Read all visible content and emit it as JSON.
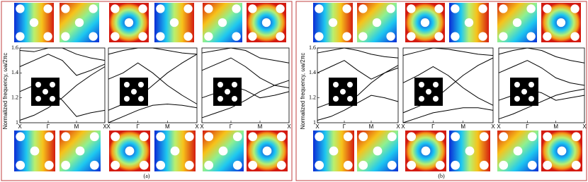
{
  "panel_labels": [
    "(a)",
    "(b)"
  ],
  "chart_data": [
    {
      "type": "line",
      "ylabel": "Normalized frequency, ωa/2πc",
      "x": [
        0,
        0.5,
        1,
        1.5,
        2,
        2.5,
        3
      ],
      "xticks": [
        {
          "value": 0,
          "label": "X"
        },
        {
          "value": 1,
          "label": "Γ"
        },
        {
          "value": 2,
          "label": "M"
        },
        {
          "value": 3,
          "label": "X"
        }
      ],
      "xlim": [
        0,
        3
      ],
      "ylim": [
        1,
        1.6
      ],
      "yticks": [
        1,
        1.2,
        1.4,
        1.6
      ],
      "series": [
        {
          "color": "#000000",
          "values": [
            1.02,
            1.06,
            1.12,
            1.2,
            1.3,
            1.38,
            1.45
          ]
        },
        {
          "color": "#000000",
          "values": [
            1.25,
            1.3,
            1.28,
            1.18,
            1.05,
            1.08,
            1.1
          ]
        },
        {
          "color": "#000000",
          "values": [
            1.45,
            1.5,
            1.55,
            1.5,
            1.38,
            1.42,
            1.47
          ]
        },
        {
          "color": "#000000",
          "values": [
            1.58,
            1.57,
            1.6,
            1.6,
            1.55,
            1.52,
            1.5
          ]
        }
      ]
    },
    {
      "type": "line",
      "x": [
        0,
        0.5,
        1,
        1.5,
        2,
        2.5,
        3
      ],
      "xticks": [
        {
          "value": 0,
          "label": "X"
        },
        {
          "value": 1,
          "label": "Γ"
        },
        {
          "value": 2,
          "label": "M"
        },
        {
          "value": 3,
          "label": "X"
        }
      ],
      "xlim": [
        0,
        3
      ],
      "ylim": [
        1,
        1.6
      ],
      "series": [
        {
          "color": "#000000",
          "values": [
            1.0,
            1.05,
            1.1,
            1.14,
            1.15,
            1.14,
            1.12
          ]
        },
        {
          "color": "#000000",
          "values": [
            1.1,
            1.15,
            1.2,
            1.3,
            1.4,
            1.48,
            1.55
          ]
        },
        {
          "color": "#000000",
          "values": [
            1.35,
            1.4,
            1.48,
            1.4,
            1.3,
            1.22,
            1.15
          ]
        },
        {
          "color": "#000000",
          "values": [
            1.55,
            1.58,
            1.6,
            1.6,
            1.58,
            1.56,
            1.55
          ]
        }
      ]
    },
    {
      "type": "line",
      "x": [
        0,
        0.5,
        1,
        1.5,
        2,
        2.5,
        3
      ],
      "xticks": [
        {
          "value": 0,
          "label": "X"
        },
        {
          "value": 1,
          "label": "Γ"
        },
        {
          "value": 2,
          "label": "M"
        },
        {
          "value": 3,
          "label": "X"
        }
      ],
      "xlim": [
        0,
        3
      ],
      "ylim": [
        1,
        1.6
      ],
      "series": [
        {
          "color": "#000000",
          "values": [
            1.04,
            1.08,
            1.12,
            1.18,
            1.25,
            1.3,
            1.34
          ]
        },
        {
          "color": "#000000",
          "values": [
            1.2,
            1.24,
            1.3,
            1.26,
            1.2,
            1.22,
            1.25
          ]
        },
        {
          "color": "#000000",
          "values": [
            1.42,
            1.47,
            1.52,
            1.45,
            1.36,
            1.3,
            1.28
          ]
        },
        {
          "color": "#000000",
          "values": [
            1.56,
            1.58,
            1.6,
            1.58,
            1.52,
            1.5,
            1.48
          ]
        }
      ]
    },
    {
      "type": "line",
      "ylabel": "Normalized frequency, ωa/2πc",
      "x": [
        0,
        0.5,
        1,
        1.5,
        2,
        2.5,
        3
      ],
      "xticks": [
        {
          "value": 0,
          "label": "X"
        },
        {
          "value": 1,
          "label": "Γ"
        },
        {
          "value": 2,
          "label": "M"
        },
        {
          "value": 3,
          "label": "X"
        }
      ],
      "xlim": [
        0,
        3
      ],
      "ylim": [
        1,
        1.6
      ],
      "yticks": [
        1,
        1.2,
        1.4,
        1.6
      ],
      "series": [
        {
          "color": "#000000",
          "values": [
            1.02,
            1.05,
            1.1,
            1.16,
            1.22,
            1.2,
            1.17
          ]
        },
        {
          "color": "#000000",
          "values": [
            1.12,
            1.16,
            1.14,
            1.22,
            1.32,
            1.4,
            1.46
          ]
        },
        {
          "color": "#000000",
          "values": [
            1.4,
            1.45,
            1.5,
            1.42,
            1.35,
            1.4,
            1.44
          ]
        },
        {
          "color": "#000000",
          "values": [
            1.56,
            1.58,
            1.6,
            1.58,
            1.55,
            1.53,
            1.52
          ]
        }
      ]
    },
    {
      "type": "line",
      "x": [
        0,
        0.5,
        1,
        1.5,
        2,
        2.5,
        3
      ],
      "xticks": [
        {
          "value": 0,
          "label": "X"
        },
        {
          "value": 1,
          "label": "Γ"
        },
        {
          "value": 2,
          "label": "M"
        },
        {
          "value": 3,
          "label": "X"
        }
      ],
      "xlim": [
        0,
        3
      ],
      "ylim": [
        1,
        1.6
      ],
      "series": [
        {
          "color": "#000000",
          "values": [
            1.0,
            1.04,
            1.08,
            1.1,
            1.12,
            1.12,
            1.1
          ]
        },
        {
          "color": "#000000",
          "values": [
            1.08,
            1.13,
            1.18,
            1.28,
            1.38,
            1.46,
            1.52
          ]
        },
        {
          "color": "#000000",
          "values": [
            1.32,
            1.38,
            1.45,
            1.38,
            1.28,
            1.2,
            1.14
          ]
        },
        {
          "color": "#000000",
          "values": [
            1.54,
            1.57,
            1.6,
            1.59,
            1.57,
            1.55,
            1.54
          ]
        }
      ]
    },
    {
      "type": "line",
      "x": [
        0,
        0.5,
        1,
        1.5,
        2,
        2.5,
        3
      ],
      "xticks": [
        {
          "value": 0,
          "label": "X"
        },
        {
          "value": 1,
          "label": "Γ"
        },
        {
          "value": 2,
          "label": "M"
        },
        {
          "value": 3,
          "label": "X"
        }
      ],
      "xlim": [
        0,
        3
      ],
      "ylim": [
        1,
        1.6
      ],
      "series": [
        {
          "color": "#000000",
          "values": [
            1.03,
            1.07,
            1.12,
            1.17,
            1.22,
            1.25,
            1.27
          ]
        },
        {
          "color": "#000000",
          "values": [
            1.18,
            1.22,
            1.27,
            1.24,
            1.18,
            1.2,
            1.22
          ]
        },
        {
          "color": "#000000",
          "values": [
            1.4,
            1.45,
            1.5,
            1.44,
            1.36,
            1.32,
            1.3
          ]
        },
        {
          "color": "#000000",
          "values": [
            1.55,
            1.58,
            1.6,
            1.58,
            1.53,
            1.5,
            1.48
          ]
        }
      ]
    }
  ]
}
